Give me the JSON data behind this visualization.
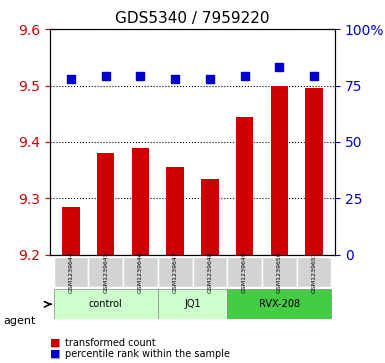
{
  "title": "GDS5340 / 7959220",
  "samples": [
    "GSM1239644",
    "GSM1239645",
    "GSM1239646",
    "GSM1239647",
    "GSM1239648",
    "GSM1239649",
    "GSM1239650",
    "GSM1239651"
  ],
  "bar_values": [
    9.285,
    9.38,
    9.39,
    9.355,
    9.335,
    9.445,
    9.5,
    9.495
  ],
  "dot_values": [
    78,
    79,
    79,
    78,
    78,
    79,
    83,
    79
  ],
  "ylim_left": [
    9.2,
    9.6
  ],
  "ylim_right": [
    0,
    100
  ],
  "yticks_left": [
    9.2,
    9.3,
    9.4,
    9.5,
    9.6
  ],
  "yticks_right": [
    0,
    25,
    50,
    75,
    100
  ],
  "bar_color": "#cc0000",
  "dot_color": "#0000cc",
  "groups": [
    {
      "label": "control",
      "indices": [
        0,
        1,
        2
      ],
      "color": "#ccffcc"
    },
    {
      "label": "JQ1",
      "indices": [
        3,
        4
      ],
      "color": "#ccffcc"
    },
    {
      "label": "RVX-208",
      "indices": [
        5,
        6,
        7
      ],
      "color": "#44cc44"
    }
  ],
  "agent_label": "agent",
  "legend_bar": "transformed count",
  "legend_dot": "percentile rank within the sample",
  "grid_color": "#000000",
  "plot_bg": "#ffffff",
  "tick_label_color_left": "#cc0000",
  "tick_label_color_right": "#0000cc",
  "bar_width": 0.5,
  "dot_right_scale": true
}
